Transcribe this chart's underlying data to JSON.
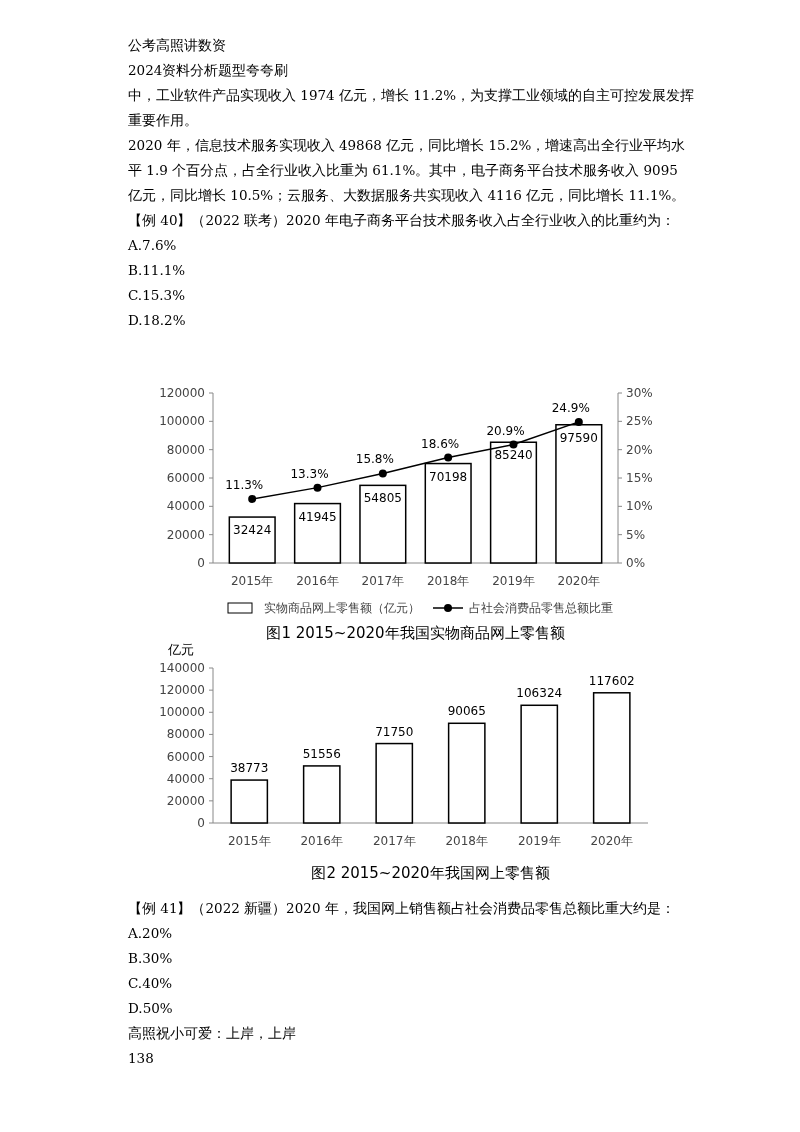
{
  "chart_data": [
    {
      "type": "bar",
      "title": "图1 2015~2020年我国实物商品网上零售额",
      "categories": [
        "2015年",
        "2016年",
        "2017年",
        "2018年",
        "2019年",
        "2020年"
      ],
      "series": [
        {
          "name": "实物商品网上零售额（亿元）",
          "color": "#ffffff",
          "values": [
            32424,
            41945,
            54805,
            70198,
            85240,
            97590
          ]
        },
        {
          "name": "占社会消费品零售总额比重",
          "type": "line",
          "axis": "y2",
          "color": "#000000",
          "values": [
            11.3,
            13.3,
            15.8,
            18.6,
            20.9,
            24.9
          ],
          "value_labels": [
            "11.3%",
            "13.3%",
            "15.8%",
            "18.6%",
            "20.9%",
            "24.9%"
          ]
        }
      ],
      "ylim": [
        0,
        120000
      ],
      "yticks": [
        0,
        20000,
        40000,
        60000,
        80000,
        100000,
        120000
      ],
      "y2lim": [
        0,
        30
      ],
      "y2ticks": [
        {
          "value": 0,
          "label": "0%"
        },
        {
          "value": 5,
          "label": "5%"
        },
        {
          "value": 10,
          "label": "10%"
        },
        {
          "value": 15,
          "label": "15%"
        },
        {
          "value": 20,
          "label": "20%"
        },
        {
          "value": 25,
          "label": "25%"
        },
        {
          "value": 30,
          "label": "30%"
        }
      ],
      "data_labels": true,
      "legend": "bottom",
      "marker": "circle",
      "line_style": "solid",
      "annotations": [
        "公考高照讲数资",
        "2024资料分析题型夸夸刷",
        "中，工业软件产品实现收入 1974 亿元，增长 11.2%，为支撑工业领域的自主可控发展发挥重要作用。",
        "2020 年，信息技术服务实现收入 49868 亿元，同比增长 15.2%，增速高出全行业平均水平 1.9 个百分点，占全行业收入比重为 61.1%。其中，电子商务平台技术服务收入 9095 亿元，同比增长 10.5%；云服务、大数据服务共实现收入 4116 亿元，同比增长 11.1%。",
        "【例 40】（2022 联考）2020 年电子商务平台技术服务收入占全行业收入的比重约为：",
        "A.7.6%",
        "B.11.1%",
        "C.15.3%",
        "D.18.2%"
      ]
    },
    {
      "type": "bar",
      "title": "图2 2015~2020年我国网上零售额",
      "ylabel": "亿元",
      "categories": [
        "2015年",
        "2016年",
        "2017年",
        "2018年",
        "2019年",
        "2020年"
      ],
      "series": [
        {
          "color": "#ffffff",
          "values": [
            38773,
            51556,
            71750,
            90065,
            106324,
            117602
          ]
        }
      ],
      "ylim": [
        0,
        140000
      ],
      "yticks": [
        0,
        20000,
        40000,
        60000,
        80000,
        100000,
        120000,
        140000
      ],
      "data_labels": true,
      "annotations": [
        "【例 41】（2022 新疆）2020 年，我国网上销售额占社会消费品零售总额比重大约是：",
        "A.20%",
        "B.30%",
        "C.40%",
        "D.50%",
        "高照祝小可爱：上岸，上岸",
        "138"
      ]
    }
  ]
}
